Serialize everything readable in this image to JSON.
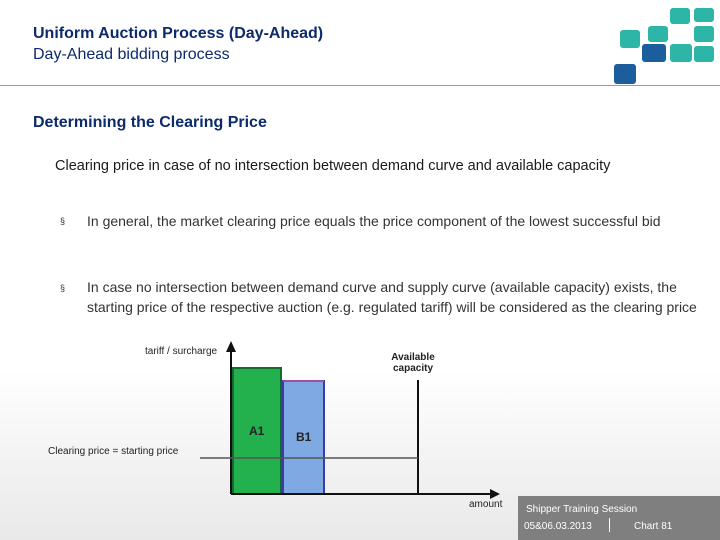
{
  "header": {
    "title": "Uniform Auction Process (Day-Ahead)",
    "subtitle": "Day-Ahead bidding process"
  },
  "section_title": "Determining the Clearing Price",
  "intro": "Clearing price in case of no intersection between demand curve and available capacity",
  "bullets": [
    "In general, the market clearing price equals the price component of the lowest successful bid",
    "In case no intersection between demand curve and supply curve (available capacity) exists, the starting price of the respective auction (e.g. regulated tariff) will be considered as the clearing price"
  ],
  "bullet_marker": "§",
  "diagram": {
    "y_axis_label": "tariff / surcharge",
    "x_axis_label": "amount",
    "capacity_label": "Available capacity",
    "clearing_label": "Clearing price = starting price",
    "bid_a": "A1",
    "bid_b": "B1",
    "colors": {
      "bid_a_fill": "#22b14c",
      "bid_a_border": "#156b2d",
      "bid_a_top": "#a8dca8",
      "bid_b_fill": "#7fa9e3",
      "bid_b_border": "#3a3aa8",
      "bid_b_top": "#a64aa8",
      "axis": "#111111",
      "price_line": "#555555"
    }
  },
  "footer": {
    "session": "Shipper Training Session",
    "date": "05&06.03.2013",
    "chart": "Chart 81"
  },
  "logo": {
    "colors": [
      "#2db5a8",
      "#1c5d9e"
    ]
  }
}
